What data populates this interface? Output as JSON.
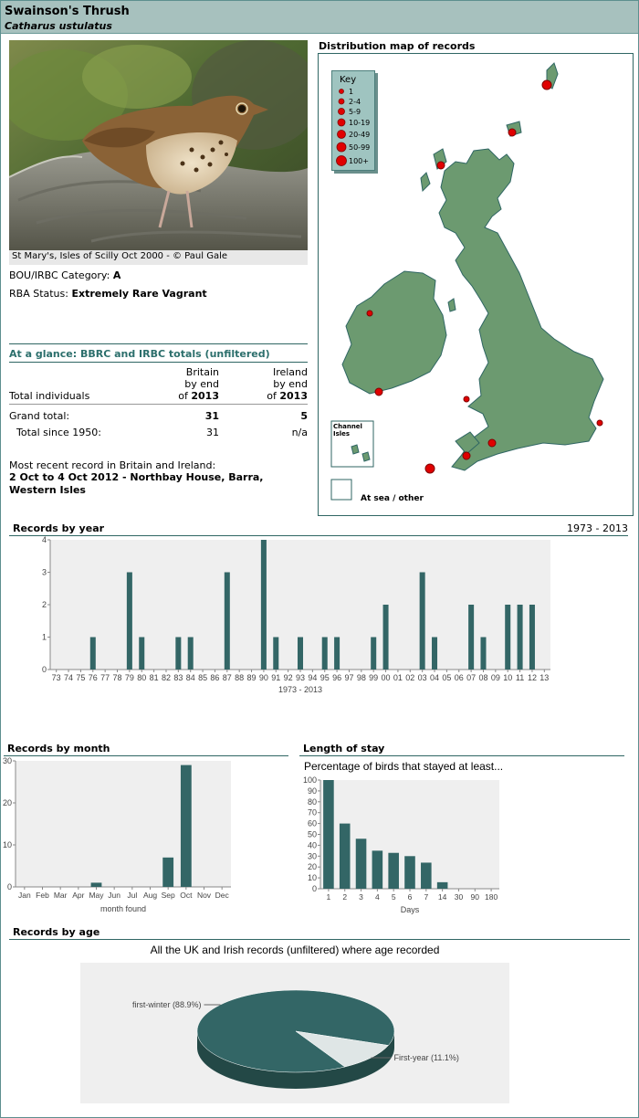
{
  "header": {
    "common_name": "Swainson's Thrush",
    "latin_name": "Catharus ustulatus"
  },
  "photo": {
    "caption": "St Mary's, Isles of Scilly Oct 2000 - © Paul Gale"
  },
  "status": {
    "category_label": "BOU/IRBC Category:",
    "category_value": "A",
    "rba_label": "RBA Status:",
    "rba_value": "Extremely Rare Vagrant"
  },
  "glance": {
    "title": "At a glance: BBRC and IRBC totals (unfiltered)",
    "britain_head": [
      "Britain",
      "by end",
      "of"
    ],
    "ireland_head": [
      "Ireland",
      "by end",
      "of"
    ],
    "year": "2013",
    "total_individuals": "Total individuals",
    "grand_total_label": "Grand total:",
    "grand_total_britain": "31",
    "grand_total_ireland": "5",
    "since_label": "Total since 1950:",
    "since_britain": "31",
    "since_ireland": "n/a",
    "recent_label": "Most recent record in Britain and Ireland:",
    "recent_value": "2 Oct to 4 Oct 2012 - Northbay House, Barra, Western Isles"
  },
  "map": {
    "title": "Distribution map of records",
    "key_title": "Key",
    "key_items": [
      "1",
      "2-4",
      "5-9",
      "10-19",
      "20-49",
      "50-99",
      "100+"
    ],
    "channel_label": "Channel Isles",
    "sea_label": "At sea / other",
    "land_color": "#6c9a70",
    "dot_color": "#e00000"
  },
  "chart_data": [
    {
      "type": "bar",
      "title": "Records by year",
      "range_label": "1973 - 2013",
      "xlabel": "1973 - 2013",
      "categories": [
        "73",
        "74",
        "75",
        "76",
        "77",
        "78",
        "79",
        "80",
        "81",
        "82",
        "83",
        "84",
        "85",
        "86",
        "87",
        "88",
        "89",
        "90",
        "91",
        "92",
        "93",
        "94",
        "95",
        "96",
        "97",
        "98",
        "99",
        "00",
        "01",
        "02",
        "03",
        "04",
        "05",
        "06",
        "07",
        "08",
        "09",
        "10",
        "11",
        "12",
        "13"
      ],
      "values": [
        0,
        0,
        0,
        1,
        0,
        0,
        3,
        1,
        0,
        0,
        1,
        1,
        0,
        0,
        3,
        0,
        0,
        4,
        1,
        0,
        1,
        0,
        1,
        1,
        0,
        0,
        1,
        2,
        0,
        0,
        3,
        1,
        0,
        0,
        2,
        1,
        0,
        2,
        2,
        2,
        0
      ],
      "ylim": [
        0,
        4
      ],
      "yticks": [
        "0",
        "1",
        "2",
        "3",
        "4"
      ],
      "bar_color": "#336666",
      "bg_color": "#efefef"
    },
    {
      "type": "bar",
      "title": "Records by month",
      "xlabel": "month found",
      "categories": [
        "Jan",
        "Feb",
        "Mar",
        "Apr",
        "May",
        "Jun",
        "Jul",
        "Aug",
        "Sep",
        "Oct",
        "Nov",
        "Dec"
      ],
      "values": [
        0,
        0,
        0,
        0,
        1,
        0,
        0,
        0,
        7,
        29,
        0,
        0
      ],
      "ylim": [
        0,
        30
      ],
      "yticks": [
        "0",
        "10",
        "20",
        "30"
      ],
      "bar_color": "#336666",
      "bg_color": "#efefef"
    },
    {
      "type": "bar",
      "title": "Length of stay",
      "subtitle": "Percentage of birds that stayed at least...",
      "xlabel": "Days",
      "categories": [
        "1",
        "2",
        "3",
        "4",
        "5",
        "6",
        "7",
        "14",
        "30",
        "90",
        "180"
      ],
      "values": [
        100,
        60,
        46,
        35,
        33,
        30,
        24,
        6,
        0,
        0,
        0
      ],
      "ylim": [
        0,
        100
      ],
      "yticks": [
        "0",
        "10",
        "20",
        "30",
        "40",
        "50",
        "60",
        "70",
        "80",
        "90",
        "100"
      ],
      "bar_color": "#336666",
      "bg_color": "#efefef"
    },
    {
      "type": "pie",
      "title": "Records by age",
      "subtitle": "All the UK and Irish records (unfiltered) where age recorded",
      "slices": [
        {
          "label": "first-winter (88.9%)",
          "value": 88.9,
          "color": "#336666"
        },
        {
          "label": "First-year (11.1%)",
          "value": 11.1,
          "color": "#dfe6e6"
        }
      ],
      "bg_color": "#efefef"
    }
  ]
}
